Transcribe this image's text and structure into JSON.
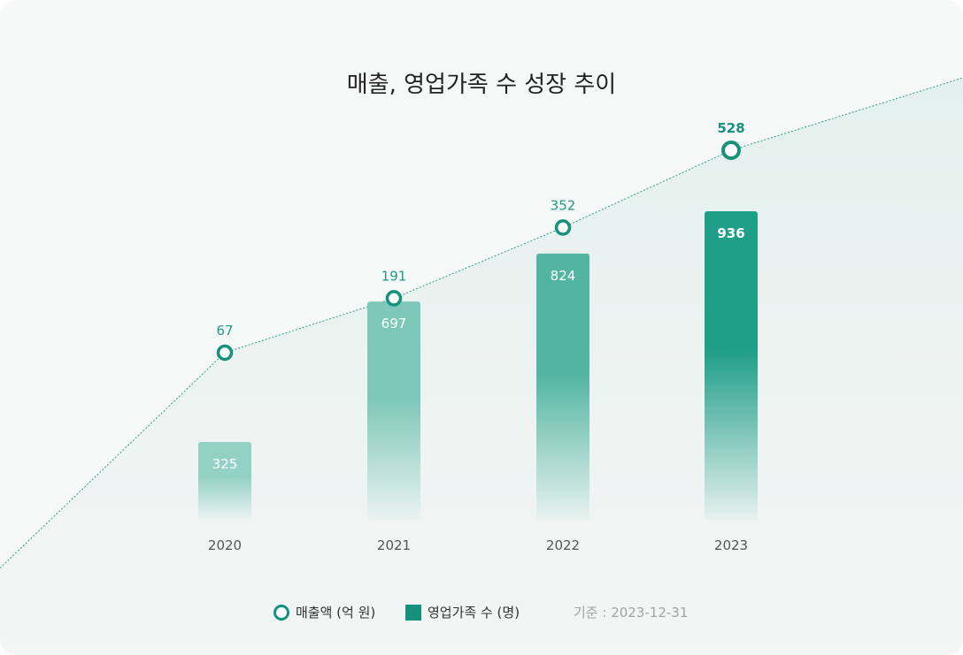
{
  "chart_data": {
    "type": "bar",
    "title": "매출, 영업가족 수 성장 추이",
    "categories": [
      "2020",
      "2021",
      "2022",
      "2023"
    ],
    "series": [
      {
        "name": "매출액 (억 원)",
        "type": "line",
        "values": [
          67,
          191,
          352,
          528
        ]
      },
      {
        "name": "영업가족 수 (명)",
        "type": "bar",
        "values": [
          325,
          697,
          824,
          936
        ]
      }
    ],
    "grid": false,
    "legend_position": "bottom"
  },
  "legend": {
    "line_label": "매출액 (억 원)",
    "bar_label": "영업가족 수 (명)",
    "note": "기준 : 2023-12-31"
  },
  "colors": {
    "accent": "#16917c",
    "bar_light": "#8ccfc1",
    "bar_dark": "#16917c",
    "background": "#f7f8f8",
    "area_fill": "#e9f3f1"
  }
}
